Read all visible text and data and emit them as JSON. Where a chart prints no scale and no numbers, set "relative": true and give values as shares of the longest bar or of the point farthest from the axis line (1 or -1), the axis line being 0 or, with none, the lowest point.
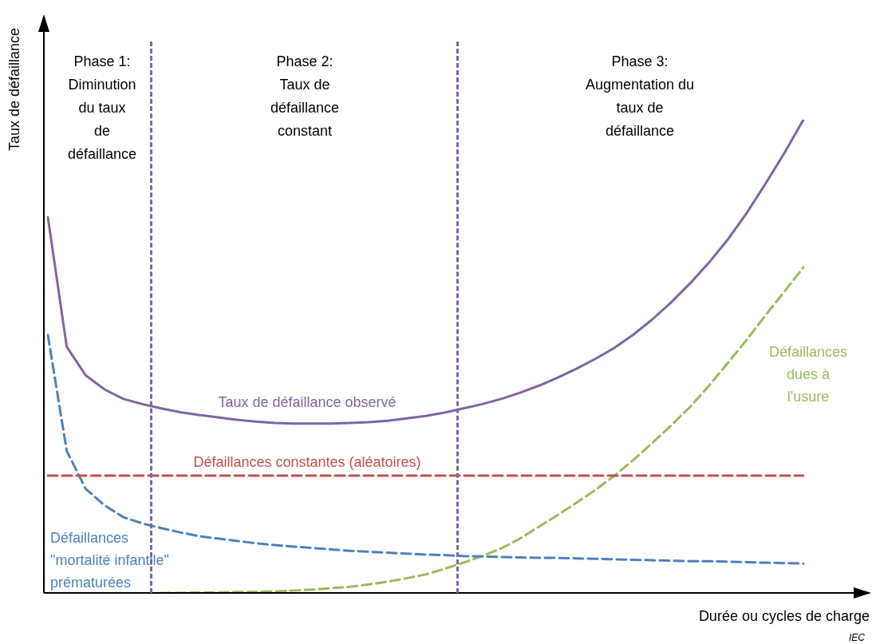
{
  "chart_data": {
    "type": "line",
    "relative": true,
    "xlabel": "Durée ou cycles de charge",
    "ylabel": "Taux de défaillance",
    "legend": false,
    "marker": "none",
    "categories": [
      null,
      null,
      null,
      null,
      null,
      null,
      null,
      null,
      null,
      null,
      null,
      null,
      null,
      null,
      null,
      null,
      null,
      null,
      null,
      null,
      null,
      null,
      null,
      null,
      null,
      null,
      null,
      null,
      null,
      null,
      null,
      null,
      null,
      null,
      null,
      null,
      null,
      null,
      null,
      null,
      null
    ],
    "series": [
      {
        "name": "Taux de défaillance observé",
        "color": "#8064a2",
        "line_style": "solid",
        "values": [
          0.794,
          0.52,
          0.46,
          0.43,
          0.41,
          0.399,
          0.39,
          0.382,
          0.376,
          0.371,
          0.366,
          0.362,
          0.359,
          0.358,
          0.358,
          0.358,
          0.359,
          0.361,
          0.364,
          0.369,
          0.374,
          0.381,
          0.39,
          0.399,
          0.41,
          0.423,
          0.438,
          0.455,
          0.474,
          0.495,
          0.518,
          0.546,
          0.578,
          0.614,
          0.654,
          0.698,
          0.747,
          0.803,
          0.865,
          0.93,
          1
        ]
      },
      {
        "name": "Défaillances constantes (aléatoires)",
        "color": "#c0504d",
        "line_style": "dashed",
        "values": [
          0.248,
          0.248,
          0.248,
          0.248,
          0.248,
          0.248,
          0.248,
          0.248,
          0.248,
          0.248,
          0.248,
          0.248,
          0.248,
          0.248,
          0.248,
          0.248,
          0.248,
          0.248,
          0.248,
          0.248,
          0.248,
          0.248,
          0.248,
          0.248,
          0.248,
          0.248,
          0.248,
          0.248,
          0.248,
          0.248,
          0.248,
          0.248,
          0.248,
          0.248,
          0.248,
          0.248,
          0.248,
          0.248,
          0.248,
          0.248,
          0.248
        ]
      },
      {
        "name": "Défaillances\n\"mortalité infantile\"\nprématurées",
        "color": "#4f81bd",
        "line_style": "dashed",
        "values": [
          0.545,
          0.3,
          0.22,
          0.185,
          0.16,
          0.147,
          0.137,
          0.128,
          0.12,
          0.115,
          0.11,
          0.105,
          0.101,
          0.098,
          0.095,
          0.092,
          0.089,
          0.087,
          0.085,
          0.083,
          0.081,
          0.08,
          0.078,
          0.077,
          0.076,
          0.075,
          0.074,
          0.074,
          0.073,
          0.072,
          0.071,
          0.07,
          0.069,
          0.068,
          0.067,
          0.067,
          0.066,
          0.065,
          0.064,
          0.063,
          0.062
        ]
      },
      {
        "name": "Défaillances\ndues à\nl'usure",
        "color": "#9bbb59",
        "line_style": "dashed",
        "values": [
          null,
          null,
          null,
          null,
          null,
          null,
          0,
          0,
          0.001,
          0.001,
          0.002,
          0.002,
          0.003,
          0.005,
          0.007,
          0.01,
          0.013,
          0.018,
          0.024,
          0.031,
          0.039,
          0.051,
          0.064,
          0.078,
          0.094,
          0.115,
          0.14,
          0.165,
          0.191,
          0.218,
          0.248,
          0.281,
          0.317,
          0.354,
          0.393,
          0.438,
          0.486,
          0.535,
          0.587,
          0.637,
          0.688
        ]
      }
    ],
    "annotations": [
      "Phase 1:\nDiminution\ndu taux\nde\ndéfaillance",
      "Phase 2:\nTaux de\ndéfaillance\nconstant",
      "Phase 3:\nAugmentation du\ntaux de\ndéfaillance",
      "IEC"
    ]
  }
}
